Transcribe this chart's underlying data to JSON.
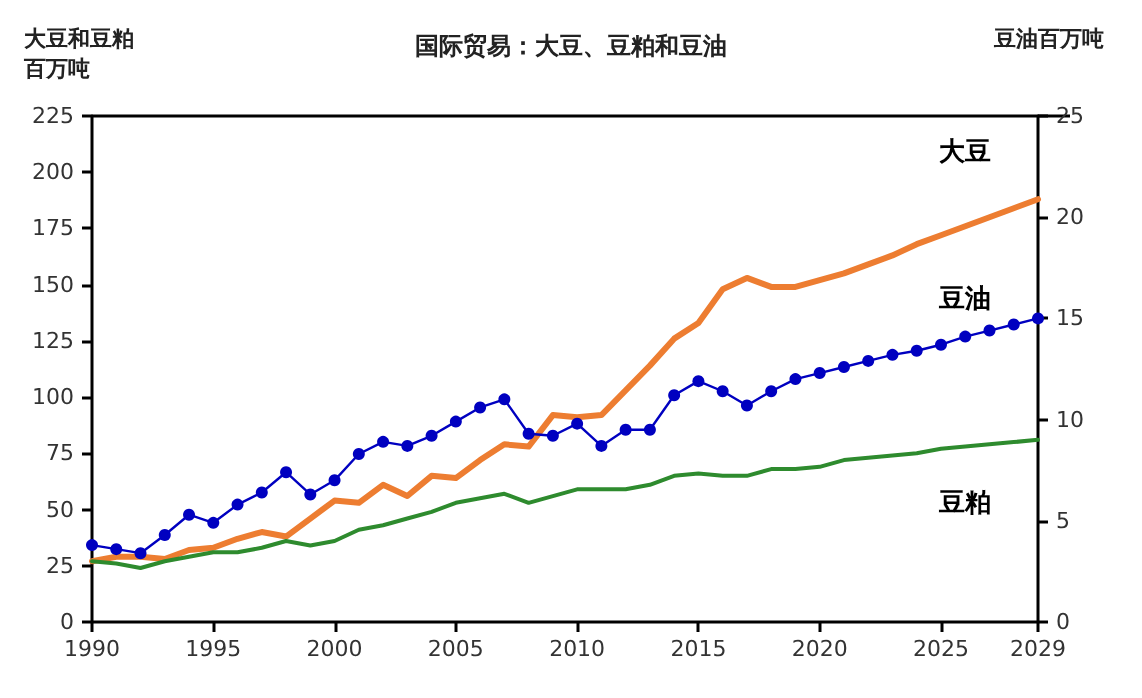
{
  "chart_data": {
    "type": "line",
    "title": "国际贸易：大豆、豆粕和豆油",
    "ylabel": "大豆和豆粕百万吨",
    "y2label": "豆油百万吨",
    "x": [
      1990,
      1991,
      1992,
      1993,
      1994,
      1995,
      1996,
      1997,
      1998,
      1999,
      2000,
      2001,
      2002,
      2003,
      2004,
      2005,
      2006,
      2007,
      2008,
      2009,
      2010,
      2011,
      2012,
      2013,
      2014,
      2015,
      2016,
      2017,
      2018,
      2019,
      2020,
      2021,
      2022,
      2023,
      2024,
      2025,
      2026,
      2027,
      2028,
      2029
    ],
    "series": [
      {
        "name": "大豆",
        "color": "#ed7d31",
        "marker": "none",
        "values": [
          27,
          29,
          29,
          28,
          32,
          33,
          37,
          40,
          38,
          46,
          54,
          53,
          61,
          56,
          65,
          64,
          72,
          79,
          78,
          92,
          91,
          92,
          103,
          114,
          126,
          133,
          148,
          153,
          149,
          149,
          152,
          155,
          159,
          163,
          168,
          172,
          176,
          180,
          184,
          188
        ]
      },
      {
        "name": "豆油",
        "color": "#0000c0",
        "axis": "y2",
        "marker": "circle",
        "values": [
          3.8,
          3.6,
          3.4,
          4.3,
          5.3,
          4.9,
          5.8,
          6.4,
          7.4,
          6.3,
          7.0,
          8.3,
          8.9,
          8.7,
          9.2,
          9.9,
          10.6,
          11.0,
          9.3,
          9.2,
          9.8,
          8.7,
          9.5,
          9.5,
          11.2,
          11.9,
          11.4,
          10.7,
          11.4,
          12.0,
          12.3,
          12.6,
          12.9,
          13.2,
          13.4,
          13.7,
          14.1,
          14.4,
          14.7,
          15.0
        ]
      },
      {
        "name": "豆粕",
        "color": "#2e8b2e",
        "marker": "none",
        "values": [
          27,
          26,
          24,
          27,
          29,
          31,
          31,
          33,
          36,
          34,
          36,
          41,
          43,
          46,
          49,
          53,
          55,
          57,
          53,
          56,
          59,
          59,
          59,
          61,
          65,
          66,
          65,
          65,
          68,
          68,
          69,
          72,
          73,
          74,
          75,
          77,
          78,
          79,
          80,
          81
        ]
      }
    ],
    "xlim": [
      1990,
      2029
    ],
    "xticks": [
      1990,
      1995,
      2000,
      2005,
      2010,
      2015,
      2020,
      2025,
      2029
    ],
    "ylim": [
      0,
      225
    ],
    "yticks": [
      0,
      25,
      50,
      75,
      100,
      125,
      150,
      175,
      200,
      225
    ],
    "y2lim": [
      0,
      25
    ],
    "y2ticks": [
      0,
      5,
      10,
      15,
      20,
      25
    ],
    "grid": false,
    "legend": false
  }
}
